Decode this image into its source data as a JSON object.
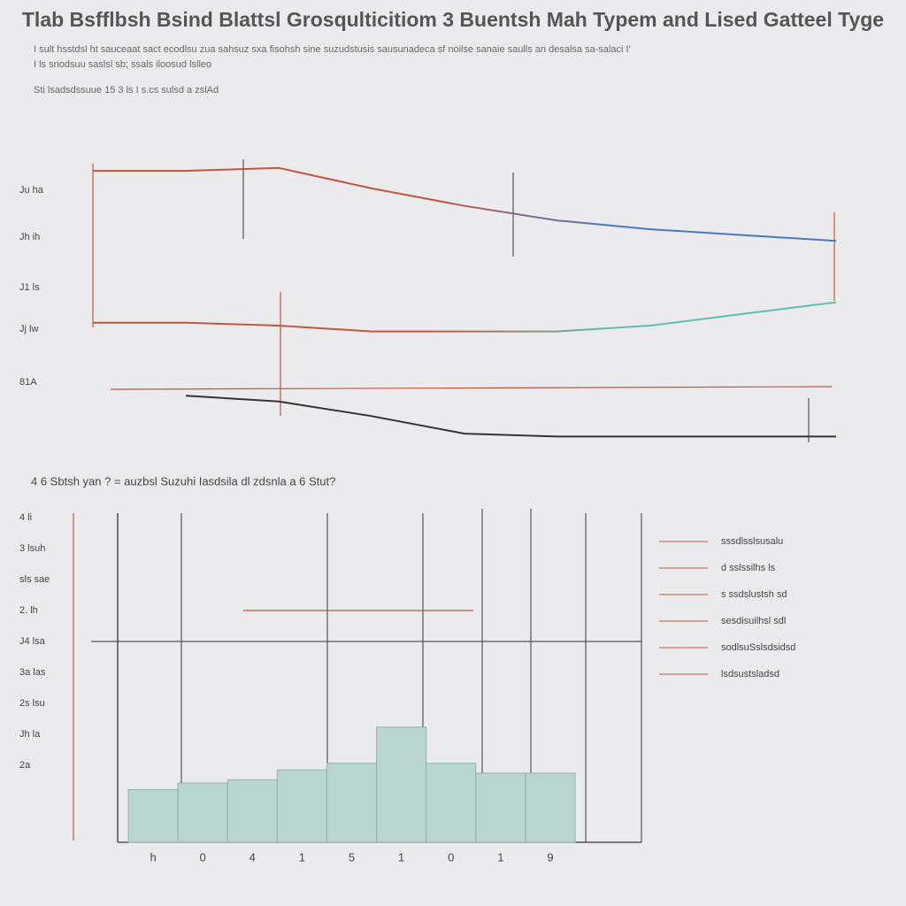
{
  "header": {
    "title": "Tlab Bsfflbsh Bsind Blattsl Grosqulticitiom 3 Buentsh Mah Typem and Lised Gatteel Tyge",
    "subtitle": [
      "I sult hsstdsl ht sauceaat sact ecodlsu zua sahsuz sxa fisohsh sine  suzudstusis sausunadeca sf noilse sanaie saulls an desalsa sa-salaci I'",
      "I ls snodsuu saslsl sb; ssals  iloosud  lslleo"
    ],
    "note": "Sti lsadsdssuue  15 3 ls I s.cs sulsd  a zslAd"
  },
  "chart_data": [
    {
      "type": "line",
      "categories": [
        null,
        null,
        null,
        null,
        null,
        null,
        null,
        null,
        null
      ],
      "ylim": [
        0,
        100
      ],
      "y_labels": [
        "Ju ha",
        "Jh ih",
        "J1 ls",
        "Jj lw",
        "81A"
      ],
      "series": [
        {
          "name": null,
          "color": [
            "#c0573f",
            "#4a78c0"
          ],
          "values": [
            93,
            93,
            94,
            87,
            81,
            76,
            73,
            71,
            69
          ]
        },
        {
          "name": null,
          "color": [
            "#c0573f",
            "#5cc0b0"
          ],
          "values": [
            41,
            41,
            40,
            38,
            38,
            38,
            40,
            44,
            48
          ]
        },
        {
          "name": null,
          "color": [
            "#333333",
            "#333333"
          ],
          "values": [
            null,
            16,
            14,
            9,
            3,
            2,
            2,
            2,
            2
          ]
        }
      ]
    },
    {
      "type": "bar",
      "title": "4 6 Sbtsh  yan ? = auzbsl Suzuhi Iasdsila dl zdsnla a 6 Stut?",
      "categories": [
        "h",
        "0",
        "4",
        "1",
        "5",
        "1",
        "0",
        "1",
        "9"
      ],
      "values": [
        16,
        18,
        19,
        22,
        24,
        35,
        24,
        21,
        21
      ],
      "color": "#b8d5ce",
      "ylim": [
        0,
        100
      ],
      "y_labels": [
        "4 li",
        "3 lsuh",
        "sls sae",
        "2. lh",
        "J4 lsa",
        "3a las",
        "2s lsu",
        "Jh la",
        "2a"
      ],
      "legend_texts": [
        "sssdlsslsusalu",
        "d  sslssilhs ls",
        "s ssdslustsh  sd",
        "sesdisuilhsl sdl",
        "sodlsuSslsdsidsd",
        "lsdsustsladsd"
      ]
    }
  ]
}
